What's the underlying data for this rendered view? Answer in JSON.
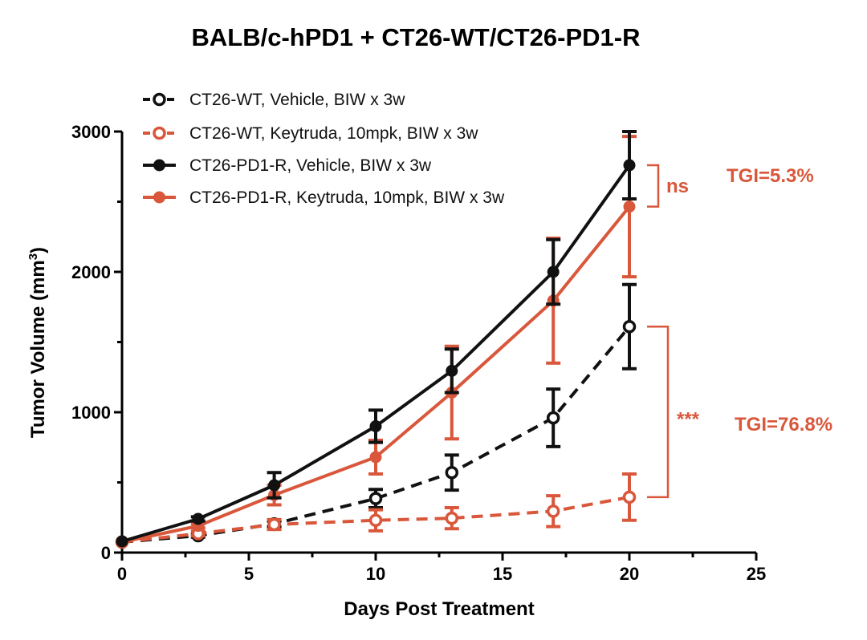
{
  "chart_data": {
    "type": "line",
    "title": "BALB/c-hPD1 + CT26-WT/CT26-PD1-R",
    "xlabel": "Days Post Treatment",
    "ylabel_main": "Tumor Volume (mm",
    "ylabel_sup": "3",
    "ylabel_close": ")",
    "xlim": [
      0,
      25
    ],
    "ylim": [
      0,
      3000
    ],
    "xticks": [
      0,
      5,
      10,
      15,
      20,
      25
    ],
    "yticks": [
      0,
      1000,
      2000,
      3000
    ],
    "grid": false,
    "legend_position": "top-left",
    "colors": {
      "black": "#111111",
      "red": "#d9573b"
    },
    "series": [
      {
        "name": "CT26-WT, Vehicle,  BIW x 3w",
        "color": "#111111",
        "line_style": "dashed",
        "marker": "open-circle",
        "x": [
          0,
          3,
          6,
          10,
          13,
          17,
          20
        ],
        "y": [
          75,
          120,
          205,
          385,
          570,
          960,
          1610
        ],
        "err": [
          0,
          10,
          20,
          65,
          125,
          205,
          300
        ]
      },
      {
        "name": "CT26-WT, Keytruda, 10mpk,  BIW x 3w",
        "color": "#d9573b",
        "line_style": "dashed",
        "marker": "open-circle",
        "x": [
          0,
          3,
          6,
          10,
          13,
          17,
          20
        ],
        "y": [
          75,
          135,
          200,
          230,
          245,
          295,
          395
        ],
        "err": [
          0,
          15,
          35,
          75,
          75,
          110,
          165
        ]
      },
      {
        "name": "CT26-PD1-R, Vehicle,  BIW x 3w",
        "color": "#111111",
        "line_style": "solid",
        "marker": "filled-circle",
        "x": [
          0,
          3,
          6,
          10,
          13,
          17,
          20
        ],
        "y": [
          80,
          240,
          480,
          900,
          1295,
          2000,
          2760
        ],
        "err": [
          0,
          15,
          90,
          115,
          155,
          230,
          240
        ]
      },
      {
        "name": "CT26-PD1-R, Keytruda, 10mpk,  BIW x 3w",
        "color": "#d9573b",
        "line_style": "solid",
        "marker": "filled-circle",
        "x": [
          0,
          3,
          6,
          10,
          13,
          17,
          20
        ],
        "y": [
          75,
          190,
          410,
          680,
          1140,
          1795,
          2465
        ],
        "err": [
          0,
          15,
          70,
          120,
          330,
          445,
          500
        ]
      }
    ],
    "annotations": [
      {
        "id": "ns",
        "text": "ns",
        "color": "#d9573b",
        "bracket_y": [
          2760,
          2465
        ]
      },
      {
        "id": "tgi1",
        "text": "TGI=5.3%",
        "color": "#d9573b"
      },
      {
        "id": "stars",
        "text": "***",
        "color": "#d9573b",
        "bracket_y": [
          1610,
          395
        ]
      },
      {
        "id": "tgi2",
        "text": "TGI=76.8%",
        "color": "#d9573b"
      }
    ]
  }
}
